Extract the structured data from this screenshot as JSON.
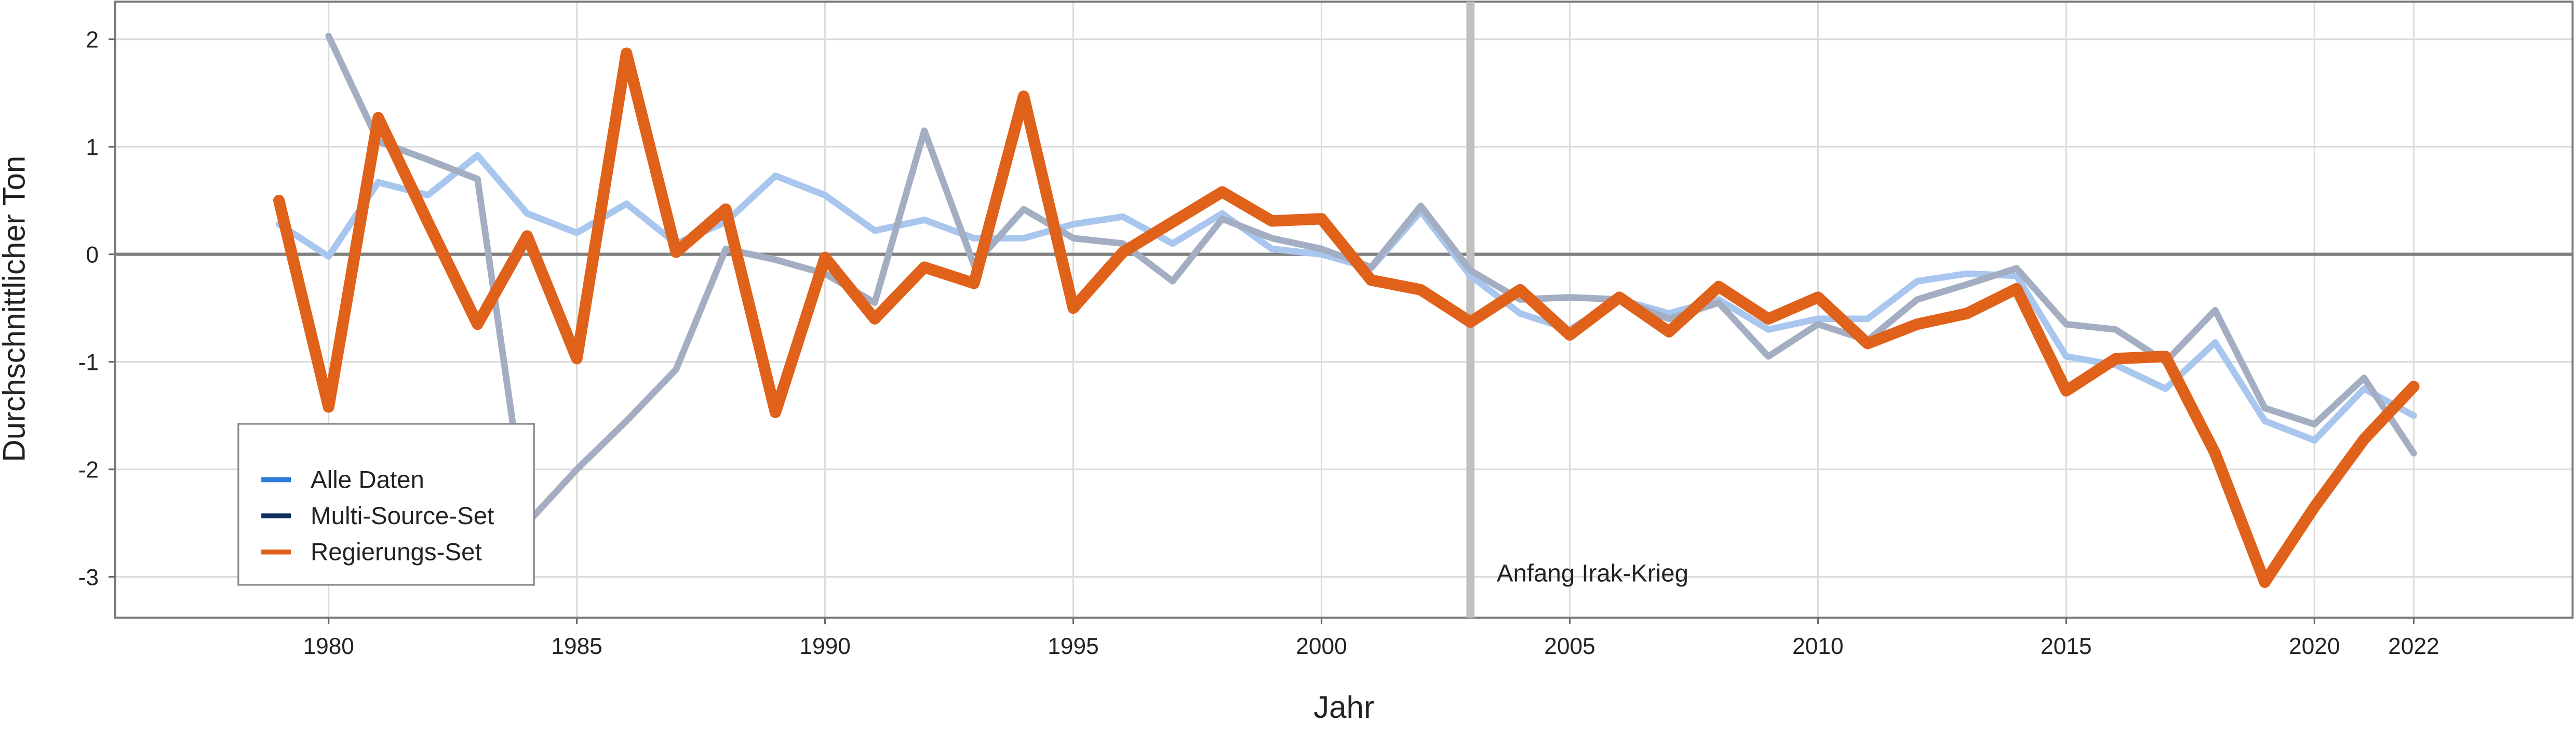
{
  "chart_data": {
    "type": "line",
    "x_label": "Jahr",
    "y_label": "Durchschnittlicher Ton",
    "x": [
      1979,
      1980,
      1981,
      1982,
      1983,
      1984,
      1985,
      1986,
      1987,
      1988,
      1989,
      1990,
      1991,
      1992,
      1993,
      1994,
      1995,
      1996,
      1997,
      1998,
      1999,
      2000,
      2001,
      2002,
      2003,
      2004,
      2005,
      2006,
      2007,
      2008,
      2009,
      2010,
      2011,
      2012,
      2013,
      2014,
      2015,
      2016,
      2017,
      2018,
      2019,
      2020,
      2021,
      2022
    ],
    "series": [
      {
        "name": "Alle Daten",
        "color": "#2b7bd8",
        "line_color": "#a9c6ee",
        "width": 4,
        "values": [
          0.28,
          -0.02,
          0.67,
          0.55,
          0.92,
          0.38,
          0.2,
          0.47,
          0.1,
          0.3,
          0.73,
          0.55,
          0.22,
          0.32,
          0.15,
          0.15,
          0.28,
          0.35,
          0.1,
          0.38,
          0.05,
          0.0,
          -0.13,
          0.4,
          -0.2,
          -0.55,
          -0.7,
          -0.42,
          -0.55,
          -0.42,
          -0.7,
          -0.6,
          -0.6,
          -0.25,
          -0.18,
          -0.2,
          -0.95,
          -1.03,
          -1.25,
          -0.82,
          -1.55,
          -1.73,
          -1.25,
          -1.5
        ]
      },
      {
        "name": "Multi-Source-Set",
        "color": "#0d2d5e",
        "line_color": "#a3aec2",
        "width": 4,
        "values": [
          null,
          2.03,
          1.05,
          0.88,
          0.7,
          -2.5,
          -2.0,
          -1.55,
          -1.07,
          0.05,
          -0.05,
          -0.18,
          -0.45,
          1.15,
          -0.1,
          0.42,
          0.15,
          0.1,
          -0.25,
          0.33,
          0.15,
          0.05,
          -0.12,
          0.45,
          -0.15,
          -0.42,
          -0.4,
          -0.42,
          -0.6,
          -0.45,
          -0.95,
          -0.65,
          -0.8,
          -0.42,
          -0.28,
          -0.13,
          -0.65,
          -0.7,
          -1.0,
          -0.52,
          -1.43,
          -1.58,
          -1.15,
          -1.85
        ]
      },
      {
        "name": "Regierungs-Set",
        "color": "#e0611a",
        "line_color": "#e0611a",
        "width": 7,
        "values": [
          0.5,
          -1.42,
          1.27,
          0.3,
          -0.65,
          0.17,
          -0.97,
          1.87,
          0.02,
          0.42,
          -1.47,
          -0.03,
          -0.6,
          -0.12,
          -0.27,
          1.47,
          -0.5,
          0.02,
          0.3,
          0.58,
          0.31,
          0.33,
          -0.24,
          -0.33,
          -0.63,
          -0.33,
          -0.75,
          -0.4,
          -0.72,
          -0.3,
          -0.6,
          -0.4,
          -0.83,
          -0.65,
          -0.55,
          -0.32,
          -1.27,
          -0.97,
          -0.95,
          -1.85,
          -3.05,
          -2.35,
          -1.72,
          -1.23
        ]
      }
    ],
    "xlim": [
      1975.7,
      2025.2
    ],
    "ylim": [
      -3.38,
      2.35
    ],
    "xticks": [
      1980,
      1985,
      1990,
      1995,
      2000,
      2005,
      2010,
      2015,
      2020,
      2022
    ],
    "yticks": [
      -3,
      -2,
      -1,
      0,
      1,
      2
    ],
    "grid": true,
    "hline": 0,
    "annotation": {
      "text": "Anfang Irak-Krieg",
      "x": 2003
    },
    "legend": "bottom-left"
  }
}
